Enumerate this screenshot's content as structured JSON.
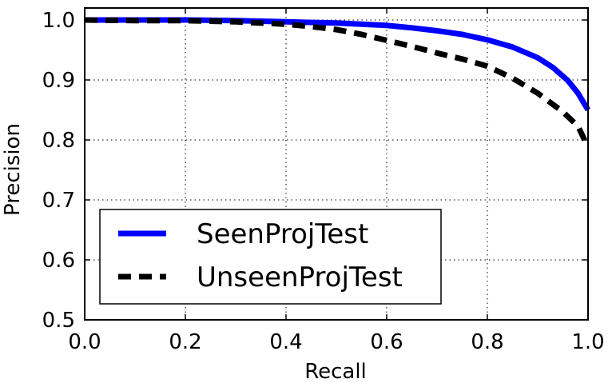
{
  "chart_data": {
    "type": "line",
    "xlabel": "Recall",
    "ylabel": "Precision",
    "xlim": [
      0.0,
      1.0
    ],
    "ylim": [
      0.5,
      1.02
    ],
    "xticks": [
      0.0,
      0.2,
      0.4,
      0.6,
      0.8,
      1.0
    ],
    "xtick_labels": [
      "0.0",
      "0.2",
      "0.4",
      "0.6",
      "0.8",
      "1.0"
    ],
    "yticks": [
      0.5,
      0.6,
      0.7,
      0.8,
      0.9,
      1.0
    ],
    "ytick_labels": [
      "0.5",
      "0.6",
      "0.7",
      "0.8",
      "0.9",
      "1.0"
    ],
    "grid": true,
    "legend_position": "lower-left",
    "series": [
      {
        "name": "SeenProjTest",
        "color": "#0000ff",
        "style": "solid",
        "x": [
          0.0,
          0.1,
          0.2,
          0.3,
          0.4,
          0.5,
          0.6,
          0.65,
          0.7,
          0.75,
          0.8,
          0.85,
          0.9,
          0.93,
          0.96,
          0.98,
          1.0
        ],
        "y": [
          1.0,
          1.0,
          1.0,
          0.999,
          0.997,
          0.995,
          0.991,
          0.987,
          0.982,
          0.976,
          0.967,
          0.955,
          0.937,
          0.921,
          0.899,
          0.878,
          0.85
        ]
      },
      {
        "name": "UnseenProjTest",
        "color": "#000000",
        "style": "dashed",
        "x": [
          0.0,
          0.1,
          0.2,
          0.3,
          0.4,
          0.45,
          0.5,
          0.55,
          0.6,
          0.65,
          0.7,
          0.75,
          0.8,
          0.85,
          0.9,
          0.95,
          0.98,
          1.0
        ],
        "y": [
          1.0,
          0.999,
          0.999,
          0.997,
          0.993,
          0.989,
          0.984,
          0.976,
          0.966,
          0.956,
          0.945,
          0.935,
          0.923,
          0.903,
          0.878,
          0.847,
          0.823,
          0.788
        ]
      }
    ]
  }
}
